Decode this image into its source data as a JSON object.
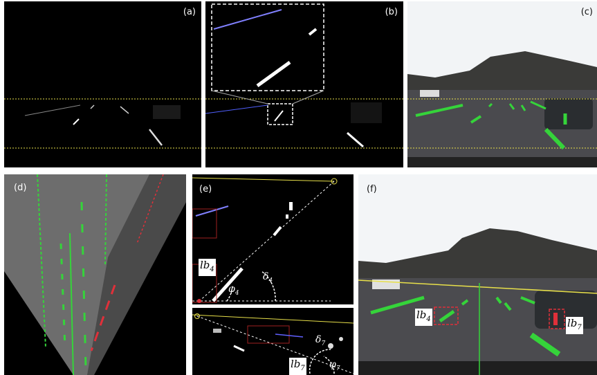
{
  "panels": {
    "a": {
      "label": "(a)"
    },
    "b": {
      "label": "(b)"
    },
    "c": {
      "label": "(c)"
    },
    "d": {
      "label": "(d)"
    },
    "e": {
      "label": "(e)"
    },
    "f": {
      "label": "(f)"
    }
  },
  "annotations": {
    "lb4": {
      "base": "lb",
      "sub": "4"
    },
    "lb7": {
      "base": "lb",
      "sub": "7"
    },
    "phi4": {
      "base": "φ",
      "sub": "4"
    },
    "phi7": {
      "base": "φ",
      "sub": "7"
    },
    "delta4": {
      "base": "δ",
      "sub": "4"
    },
    "delta7": {
      "base": "δ",
      "sub": "7"
    }
  },
  "colors": {
    "roi_line": "#e8e04a",
    "lane_green": "#35d43a",
    "lane_red": "#e0303a",
    "highlight_box": "#ffffff"
  }
}
